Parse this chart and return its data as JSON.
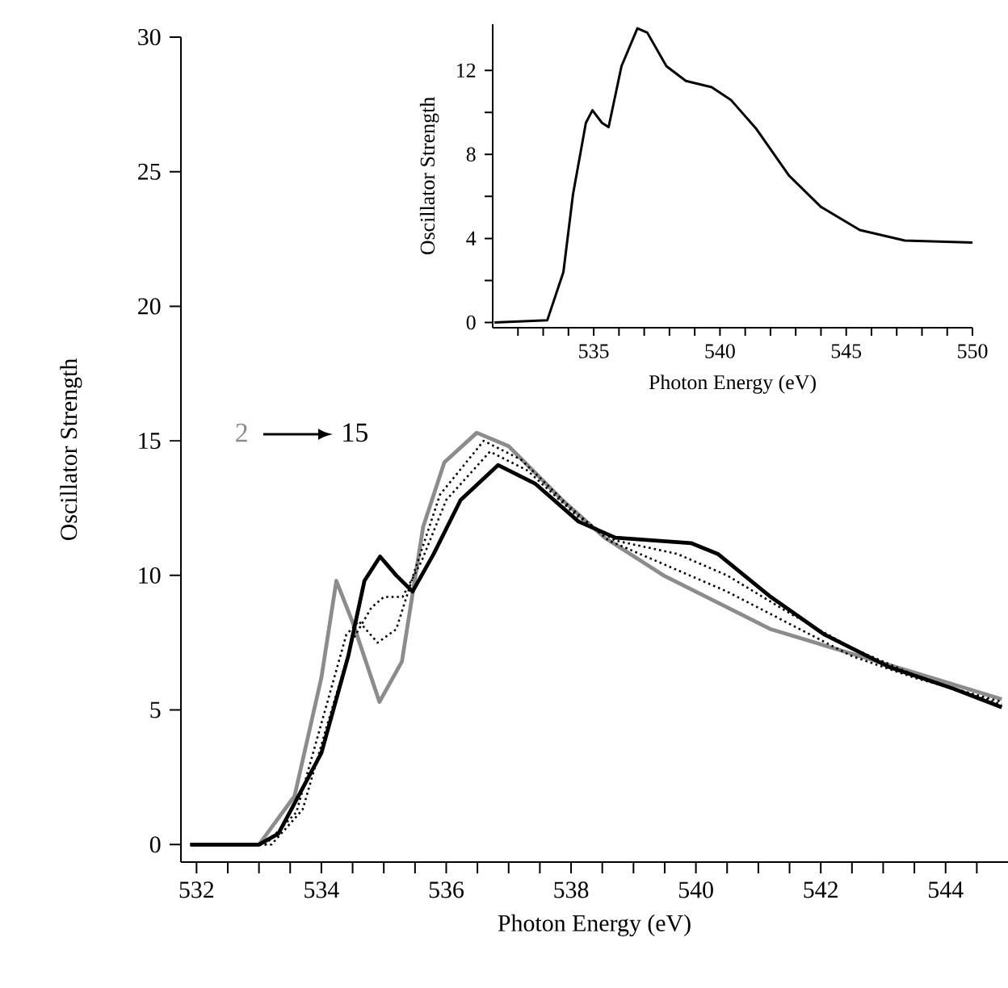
{
  "chart_data": [
    {
      "type": "line",
      "xlabel": "Photon Energy (eV)",
      "ylabel": "Oscillator Strength",
      "xlim": [
        531.75,
        545.0
      ],
      "ylim": [
        -0.65,
        30
      ],
      "xticks": [
        532,
        {
          "value": 532.5,
          "label": null
        },
        {
          "value": 533,
          "label": null
        },
        {
          "value": 533.5,
          "label": null
        },
        534,
        {
          "value": 534.5,
          "label": null
        },
        {
          "value": 535,
          "label": null
        },
        {
          "value": 535.5,
          "label": null
        },
        536,
        {
          "value": 536.5,
          "label": null
        },
        {
          "value": 537,
          "label": null
        },
        {
          "value": 537.5,
          "label": null
        },
        538,
        {
          "value": 538.5,
          "label": null
        },
        {
          "value": 539,
          "label": null
        },
        {
          "value": 539.5,
          "label": null
        },
        540,
        {
          "value": 540.5,
          "label": null
        },
        {
          "value": 541,
          "label": null
        },
        {
          "value": 541.5,
          "label": null
        },
        542,
        {
          "value": 542.5,
          "label": null
        },
        {
          "value": 543,
          "label": null
        },
        {
          "value": 543.5,
          "label": null
        },
        544,
        {
          "value": 544.5,
          "label": null
        }
      ],
      "yticks": [
        0,
        5,
        10,
        15,
        20,
        25,
        30
      ],
      "annotations": [
        "2",
        "15"
      ],
      "series": [
        {
          "color": "#8c8c8c",
          "line_style": "solid",
          "x": [
            531.9,
            533.0,
            533.57,
            534.0,
            534.24,
            534.51,
            534.93,
            535.29,
            535.63,
            535.97,
            536.49,
            537.0,
            537.86,
            538.54,
            539.48,
            541.2,
            543.77,
            544.9
          ],
          "values": [
            0,
            0,
            1.8,
            6.2,
            9.8,
            8.2,
            5.3,
            6.8,
            11.8,
            14.2,
            15.3,
            14.8,
            12.8,
            11.4,
            10.0,
            8.0,
            6.2,
            5.4
          ]
        },
        {
          "color": "#000000",
          "line_style": "dotted",
          "x": [
            531.9,
            533.1,
            533.6,
            534.0,
            534.4,
            534.6,
            534.9,
            535.2,
            535.5,
            535.9,
            536.6,
            537.2,
            538.0,
            538.6,
            539.5,
            540.5,
            541.5,
            542.5,
            543.5,
            544.9
          ],
          "values": [
            0,
            0,
            1.2,
            4.5,
            7.8,
            8.3,
            7.5,
            8.0,
            10.2,
            13.0,
            15.0,
            14.3,
            12.5,
            11.3,
            10.4,
            9.4,
            8.2,
            7.0,
            6.2,
            5.3
          ]
        },
        {
          "color": "#000000",
          "line_style": "dotted",
          "x": [
            531.9,
            533.2,
            533.7,
            534.1,
            534.5,
            534.8,
            535.0,
            535.3,
            535.6,
            536.0,
            536.7,
            537.3,
            538.1,
            538.7,
            539.7,
            540.5,
            541.5,
            542.5,
            543.5,
            544.9
          ],
          "values": [
            0,
            0,
            1.3,
            4.5,
            7.6,
            8.8,
            9.2,
            9.2,
            10.5,
            12.8,
            14.6,
            13.9,
            12.2,
            11.3,
            10.8,
            10.0,
            8.6,
            7.3,
            6.3,
            5.2
          ]
        },
        {
          "color": "#000000",
          "line_style": "solid",
          "x": [
            531.9,
            533.0,
            533.31,
            534.0,
            534.43,
            534.69,
            534.94,
            535.2,
            535.46,
            535.8,
            536.23,
            536.83,
            537.43,
            538.12,
            538.71,
            539.92,
            540.35,
            541.2,
            542.06,
            543.09,
            544.12,
            544.9
          ],
          "values": [
            0,
            0,
            0.4,
            3.4,
            7.0,
            9.8,
            10.7,
            10.0,
            9.4,
            10.8,
            12.8,
            14.1,
            13.4,
            12.0,
            11.4,
            11.2,
            10.8,
            9.2,
            7.8,
            6.6,
            5.8,
            5.1
          ]
        }
      ]
    },
    {
      "type": "line",
      "xlabel": "Photon Energy (eV)",
      "ylabel": "Oscillator Strength",
      "xlim": [
        531,
        550
      ],
      "ylim": [
        -0.25,
        14.2
      ],
      "xticks": [
        {
          "value": 532,
          "label": null
        },
        {
          "value": 533,
          "label": null
        },
        {
          "value": 534,
          "label": null
        },
        535,
        {
          "value": 536,
          "label": null
        },
        {
          "value": 537,
          "label": null
        },
        {
          "value": 538,
          "label": null
        },
        {
          "value": 539,
          "label": null
        },
        540,
        {
          "value": 541,
          "label": null
        },
        {
          "value": 542,
          "label": null
        },
        {
          "value": 543,
          "label": null
        },
        {
          "value": 544,
          "label": null
        },
        545,
        {
          "value": 546,
          "label": null
        },
        {
          "value": 547,
          "label": null
        },
        {
          "value": 548,
          "label": null
        },
        {
          "value": 549,
          "label": null
        },
        550
      ],
      "yticks": [
        0,
        {
          "value": 2,
          "label": null
        },
        4,
        {
          "value": 6,
          "label": null
        },
        8,
        {
          "value": 10,
          "label": null
        },
        12
      ],
      "series": [
        {
          "color": "#000000",
          "line_style": "solid",
          "x": [
            531.07,
            533.16,
            533.8,
            534.18,
            534.69,
            534.95,
            535.33,
            535.59,
            536.1,
            536.73,
            537.12,
            537.88,
            538.65,
            539.67,
            540.43,
            541.45,
            542.73,
            544.0,
            545.54,
            547.32,
            550.0
          ],
          "values": [
            0,
            0.1,
            2.4,
            6.1,
            9.5,
            10.1,
            9.5,
            9.3,
            12.2,
            14.0,
            13.8,
            12.2,
            11.5,
            11.2,
            10.6,
            9.2,
            7.0,
            5.5,
            4.4,
            3.9,
            3.8
          ]
        }
      ]
    }
  ]
}
